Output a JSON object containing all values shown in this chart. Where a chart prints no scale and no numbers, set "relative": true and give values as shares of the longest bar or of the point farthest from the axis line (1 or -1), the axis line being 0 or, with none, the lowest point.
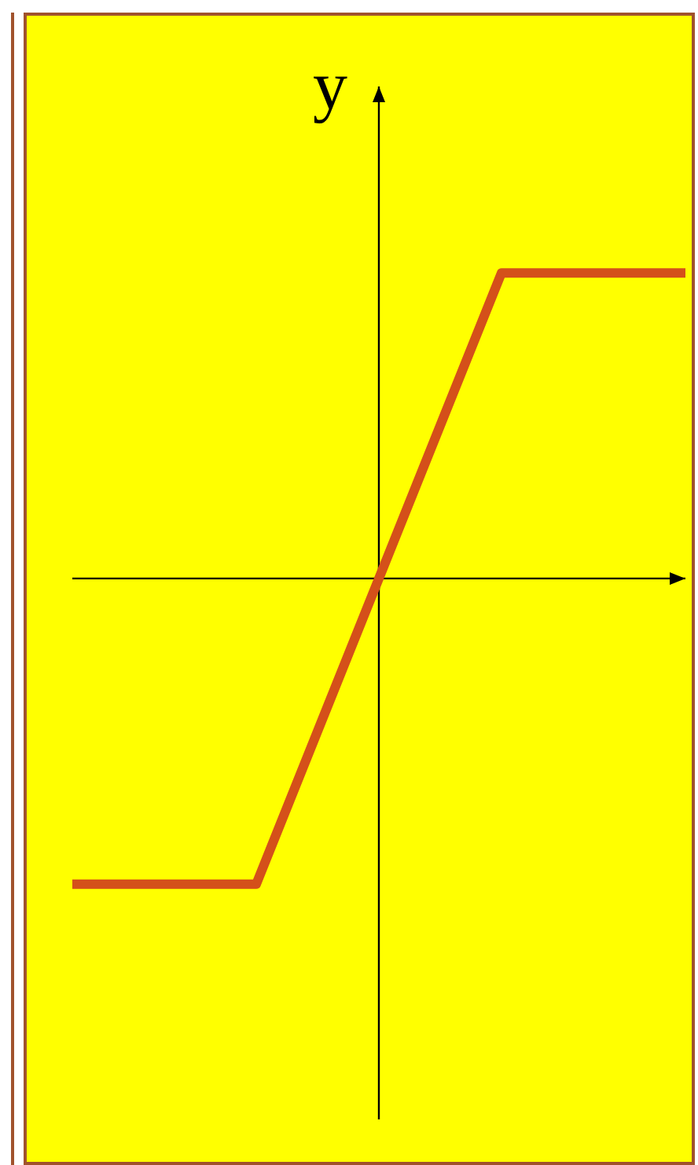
{
  "chart_data": {
    "type": "line",
    "ylabel": "y",
    "relative": true,
    "categories": [
      null,
      null,
      null,
      null,
      null,
      null,
      null,
      null,
      null,
      null,
      null
    ],
    "series": [
      {
        "color": "#d4501a",
        "values": [
          -1,
          -1,
          -1,
          -1,
          -0.5,
          0,
          0.5,
          1,
          1,
          1,
          1
        ]
      }
    ]
  }
}
